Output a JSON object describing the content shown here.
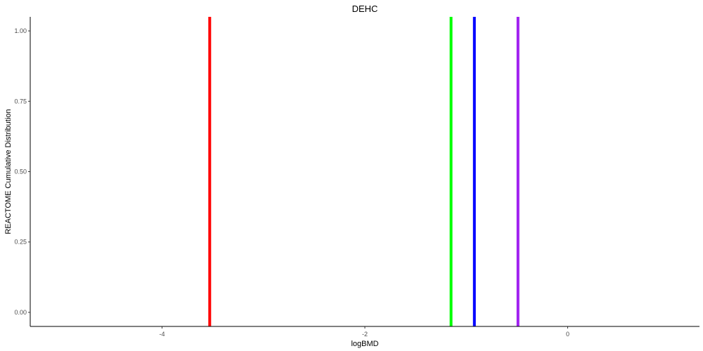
{
  "chart_data": {
    "type": "line",
    "title": "DEHC",
    "xlabel": "logBMD",
    "ylabel": "REACTOME Cumulative Distribution",
    "xlim": [
      -5.3,
      1.3
    ],
    "ylim": [
      -0.05,
      1.05
    ],
    "x_ticks": [
      -4,
      -2,
      0
    ],
    "x_tick_labels": [
      "-4",
      "-2",
      "0"
    ],
    "y_ticks": [
      0,
      0.25,
      0.5,
      0.75,
      1.0
    ],
    "y_tick_labels": [
      "0.00",
      "0.25",
      "0.50",
      "0.75",
      "1.00"
    ],
    "grid": false,
    "legend": "none",
    "series": [
      {
        "x": -3.53,
        "color": "#ff0000"
      },
      {
        "x": -1.15,
        "color": "#00ff00"
      },
      {
        "x": -0.92,
        "color": "#0000ff"
      },
      {
        "x": -0.49,
        "color": "#a020f0"
      }
    ]
  }
}
